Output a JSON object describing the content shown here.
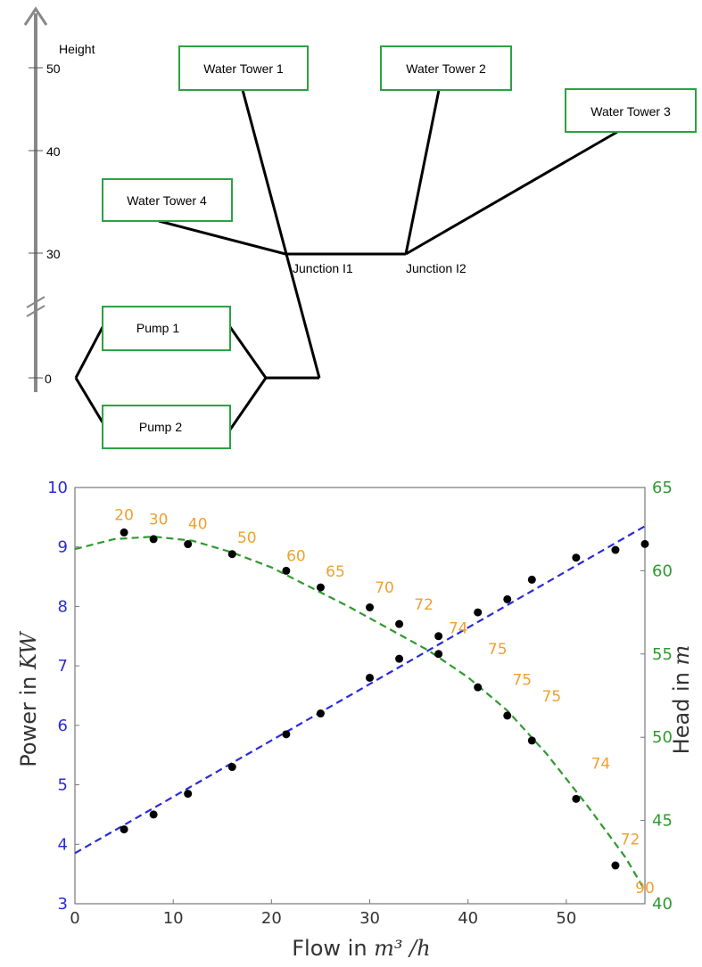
{
  "diagram": {
    "height_axis": {
      "title": "Height",
      "ticks": [
        "50",
        "40",
        "30",
        "0"
      ]
    },
    "boxes": {
      "water_tower_1": "Water Tower 1",
      "water_tower_2": "Water Tower 2",
      "water_tower_3": "Water Tower 3",
      "water_tower_4": "Water Tower 4",
      "pump_1": "Pump 1",
      "pump_2": "Pump 2"
    },
    "junctions": {
      "j1": "Junction I1",
      "j2": "Junction I2"
    },
    "colors": {
      "box_border": "#2ea043",
      "pipe": "#000000",
      "axis_arrow": "#888888"
    }
  },
  "chart_data": {
    "type": "scatter",
    "xlabel_prefix": "Flow in ",
    "xlabel_unit": "m³ /h",
    "ylabel_prefix": "Power in ",
    "ylabel_unit": "KW",
    "y2label_prefix": "Head in ",
    "y2label_unit": "m",
    "xlim": [
      0,
      58
    ],
    "ylim": [
      3,
      10
    ],
    "y2lim": [
      40,
      65
    ],
    "xticks": [
      "0",
      "10",
      "20",
      "30",
      "40",
      "50"
    ],
    "yticks": [
      "3",
      "4",
      "5",
      "6",
      "7",
      "8",
      "9",
      "10"
    ],
    "y2ticks": [
      "40",
      "45",
      "50",
      "55",
      "60",
      "65"
    ],
    "power_points": {
      "x": [
        5,
        8,
        11.5,
        16,
        21.5,
        25,
        30,
        33,
        37,
        41,
        44,
        46.5,
        51,
        55,
        58
      ],
      "y": [
        4.25,
        4.5,
        4.85,
        5.3,
        5.85,
        6.2,
        6.8,
        7.12,
        7.5,
        7.9,
        8.12,
        8.45,
        8.82,
        8.95,
        9.05
      ]
    },
    "head_points": {
      "x": [
        5,
        8,
        11.5,
        16,
        21.5,
        25,
        30,
        33,
        37,
        41,
        44,
        46.5,
        51,
        55
      ],
      "y": [
        62.3,
        61.9,
        61.6,
        61.0,
        60.0,
        59.0,
        57.8,
        56.8,
        55.0,
        53.0,
        51.3,
        49.8,
        46.3,
        42.3
      ]
    },
    "power_fit": {
      "x": [
        0,
        58
      ],
      "y": [
        3.85,
        9.35
      ]
    },
    "head_fit": {
      "x": [
        0,
        4,
        8,
        12,
        16,
        20,
        24,
        28,
        32,
        36,
        40,
        44,
        48,
        52,
        56,
        58
      ],
      "y": [
        61.3,
        61.9,
        62.05,
        61.8,
        61.1,
        60.2,
        59.0,
        57.8,
        56.5,
        55.2,
        53.6,
        51.6,
        49.0,
        46.0,
        42.8,
        40.8
      ]
    },
    "efficiency_labels": [
      {
        "x": 5,
        "y": 9.45,
        "text": "20"
      },
      {
        "x": 8.5,
        "y": 9.38,
        "text": "30"
      },
      {
        "x": 12.5,
        "y": 9.3,
        "text": "40"
      },
      {
        "x": 17.5,
        "y": 9.07,
        "text": "50"
      },
      {
        "x": 22.5,
        "y": 8.76,
        "text": "60"
      },
      {
        "x": 26.5,
        "y": 8.5,
        "text": "65"
      },
      {
        "x": 31.5,
        "y": 8.23,
        "text": "70"
      },
      {
        "x": 35.5,
        "y": 7.95,
        "text": "72"
      },
      {
        "x": 39,
        "y": 7.55,
        "text": "74"
      },
      {
        "x": 43,
        "y": 7.2,
        "text": "75"
      },
      {
        "x": 45.5,
        "y": 6.68,
        "text": "75"
      },
      {
        "x": 48.5,
        "y": 6.4,
        "text": "75"
      },
      {
        "x": 53.5,
        "y": 5.27,
        "text": "74"
      },
      {
        "x": 56.5,
        "y": 4.0,
        "text": "72"
      },
      {
        "x": 58,
        "y": 3.18,
        "text": "90"
      }
    ],
    "colors": {
      "left_axis": "#2b2bd8",
      "right_axis": "#2e9a2e",
      "power_fit": "#2b2bd8",
      "head_fit": "#2e9a2e",
      "points": "#000000",
      "efficiency_labels": "#f0a030"
    }
  }
}
